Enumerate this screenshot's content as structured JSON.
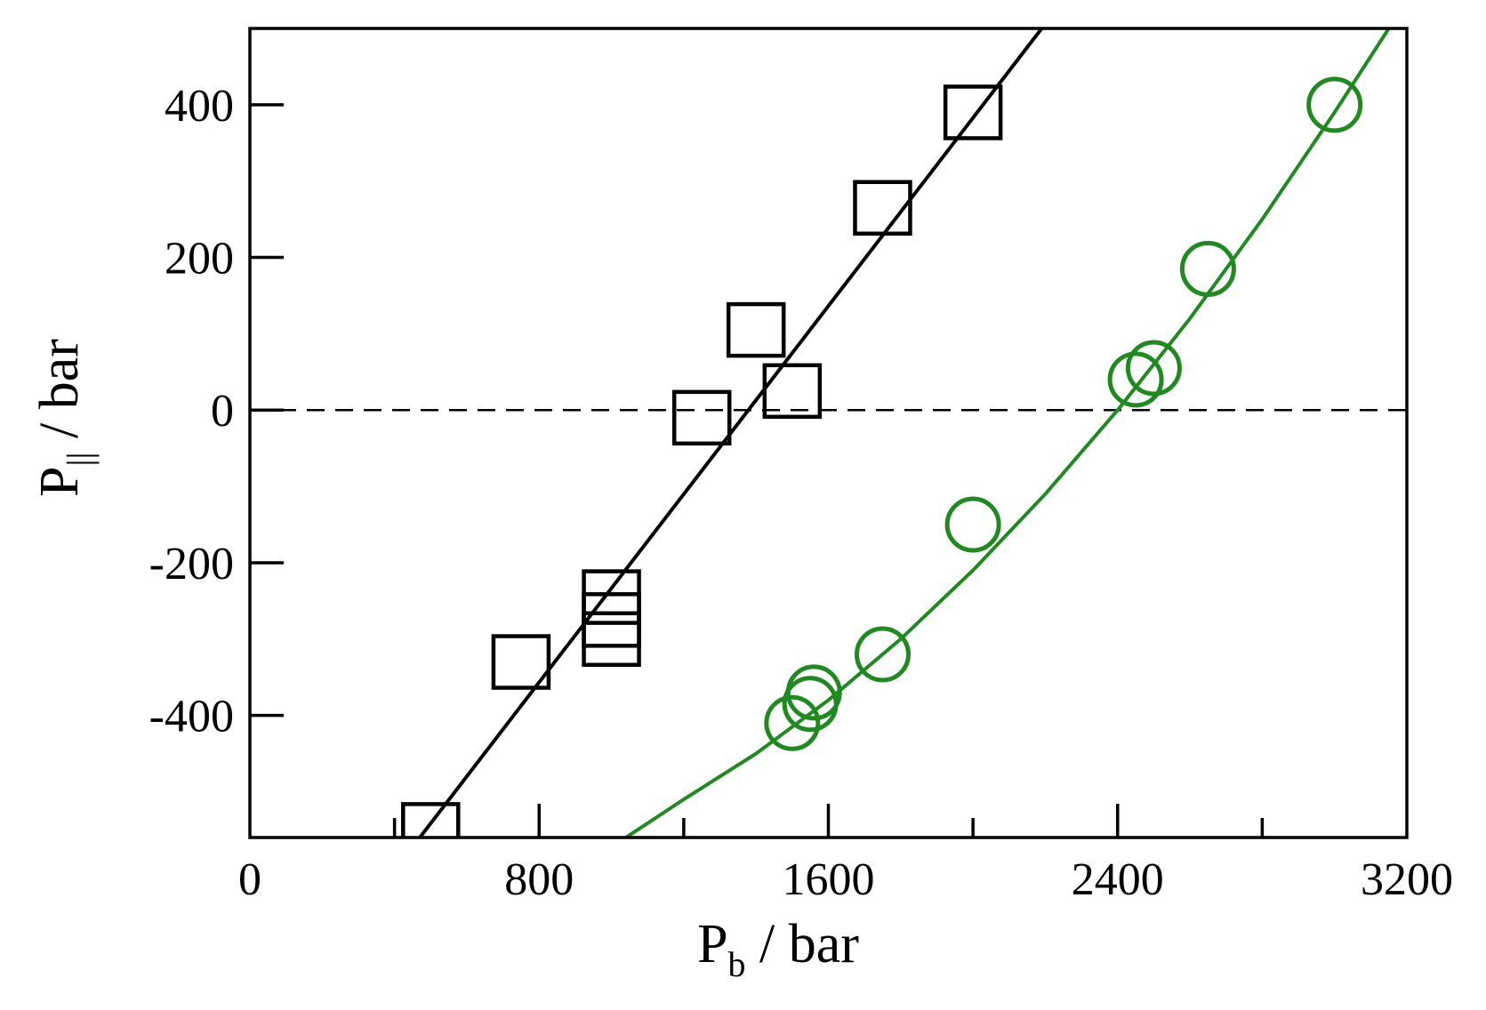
{
  "chart_data": {
    "type": "scatter",
    "xlabel": {
      "main": "P",
      "sub": "b",
      "unit": " / bar"
    },
    "ylabel": {
      "main": "P",
      "sub": "||",
      "unit": " / bar"
    },
    "xlim": [
      0,
      3200
    ],
    "ylim": [
      -560,
      500
    ],
    "x_ticks_major": [
      0,
      800,
      1600,
      2400,
      3200
    ],
    "x_ticks_minor": [
      400,
      1200,
      2000,
      2800
    ],
    "y_ticks_major": [
      -400,
      -200,
      0,
      200,
      400
    ],
    "x_tick_labels": [
      "0",
      "800",
      "1600",
      "2400",
      "3200"
    ],
    "y_tick_labels": [
      "-400",
      "-200",
      "0",
      "200",
      "400"
    ],
    "grid": false,
    "reference_line": {
      "y": 0,
      "style": "dashed",
      "color": "#000000"
    },
    "series": [
      {
        "marker": "square",
        "color": "#000000",
        "points": [
          {
            "x": 500,
            "y": -550
          },
          {
            "x": 750,
            "y": -330
          },
          {
            "x": 1000,
            "y": -245
          },
          {
            "x": 1000,
            "y": -275
          },
          {
            "x": 1000,
            "y": -300
          },
          {
            "x": 1250,
            "y": -10
          },
          {
            "x": 1400,
            "y": 105
          },
          {
            "x": 1500,
            "y": 25
          },
          {
            "x": 1750,
            "y": 265
          },
          {
            "x": 2000,
            "y": 390
          }
        ],
        "fit_line": [
          [
            470,
            -560
          ],
          [
            2190,
            500
          ]
        ]
      },
      {
        "marker": "circle",
        "color": "#1f8a1f",
        "points": [
          {
            "x": 1500,
            "y": -410
          },
          {
            "x": 1550,
            "y": -385
          },
          {
            "x": 1560,
            "y": -370
          },
          {
            "x": 1750,
            "y": -320
          },
          {
            "x": 2000,
            "y": -150
          },
          {
            "x": 2450,
            "y": 40
          },
          {
            "x": 2500,
            "y": 55
          },
          {
            "x": 2650,
            "y": 185
          },
          {
            "x": 3000,
            "y": 400
          }
        ],
        "fit_curve": [
          [
            1040,
            -560
          ],
          [
            1200,
            -510
          ],
          [
            1400,
            -450
          ],
          [
            1600,
            -380
          ],
          [
            1800,
            -300
          ],
          [
            2000,
            -210
          ],
          [
            2200,
            -110
          ],
          [
            2400,
            0
          ],
          [
            2600,
            120
          ],
          [
            2800,
            250
          ],
          [
            3000,
            390
          ],
          [
            3150,
            500
          ]
        ]
      }
    ]
  }
}
